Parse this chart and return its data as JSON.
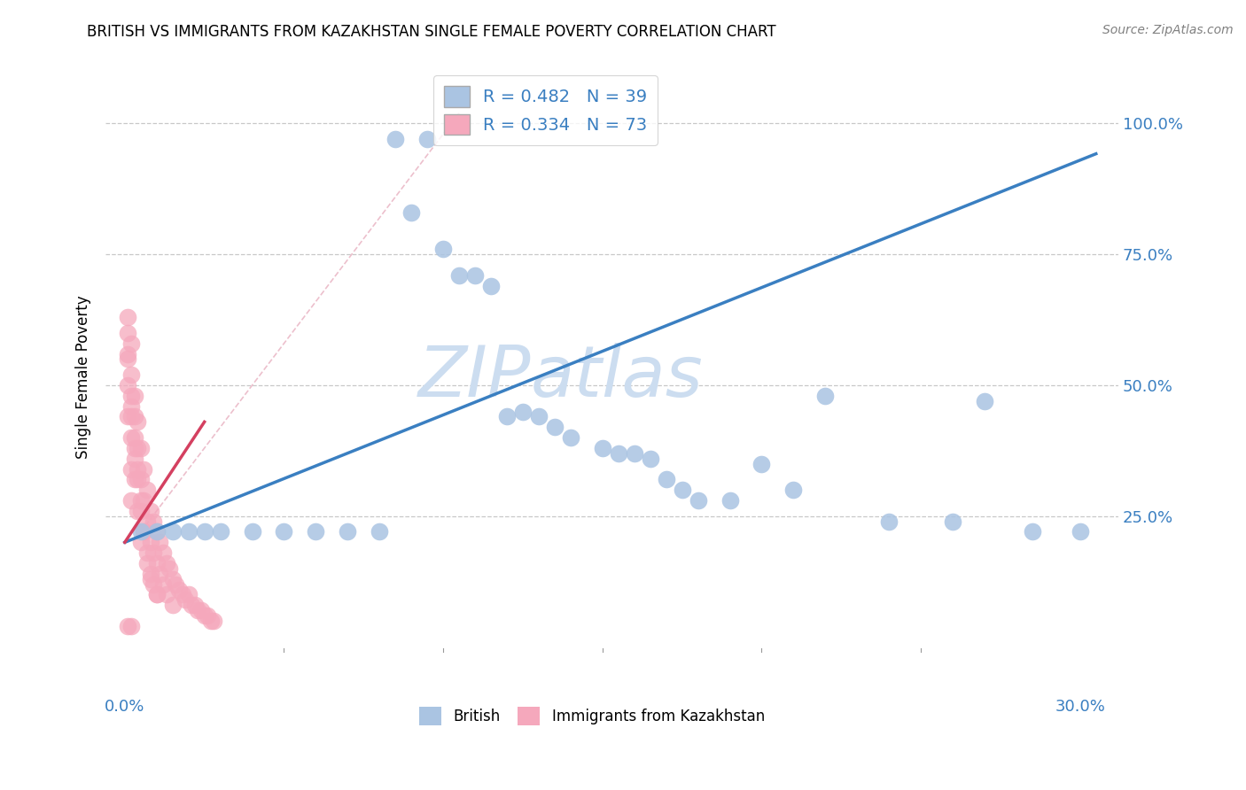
{
  "title": "BRITISH VS IMMIGRANTS FROM KAZAKHSTAN SINGLE FEMALE POVERTY CORRELATION CHART",
  "source": "Source: ZipAtlas.com",
  "ylabel": "Single Female Poverty",
  "x_tick_labels": [
    "0.0%",
    "",
    "",
    "",
    "",
    "",
    "30.0%"
  ],
  "x_tick_values": [
    0.0,
    0.05,
    0.1,
    0.15,
    0.2,
    0.25,
    0.3
  ],
  "y_tick_labels": [
    "",
    "25.0%",
    "50.0%",
    "75.0%",
    "100.0%"
  ],
  "y_tick_values": [
    0.0,
    0.25,
    0.5,
    0.75,
    1.0
  ],
  "xlim": [
    -0.006,
    0.312
  ],
  "ylim": [
    -0.09,
    1.12
  ],
  "legend_r1": "R = 0.482",
  "legend_n1": "N = 39",
  "legend_r2": "R = 0.334",
  "legend_n2": "N = 73",
  "british_color": "#aac4e2",
  "kazakh_color": "#f5a8bc",
  "british_line_color": "#3a7fc1",
  "kazakh_line_color": "#d44060",
  "dash_line_color": "#e8b0c0",
  "watermark_color": "#ccddf0",
  "brit_x": [
    0.005,
    0.01,
    0.015,
    0.02,
    0.025,
    0.03,
    0.04,
    0.05,
    0.06,
    0.07,
    0.08,
    0.085,
    0.09,
    0.095,
    0.1,
    0.105,
    0.11,
    0.115,
    0.12,
    0.125,
    0.13,
    0.135,
    0.14,
    0.15,
    0.155,
    0.16,
    0.165,
    0.17,
    0.175,
    0.18,
    0.19,
    0.2,
    0.21,
    0.22,
    0.24,
    0.26,
    0.27,
    0.285,
    0.3
  ],
  "brit_y": [
    0.22,
    0.22,
    0.22,
    0.22,
    0.22,
    0.22,
    0.22,
    0.22,
    0.22,
    0.22,
    0.22,
    0.97,
    0.83,
    0.97,
    0.76,
    0.71,
    0.71,
    0.69,
    0.44,
    0.45,
    0.44,
    0.42,
    0.4,
    0.38,
    0.37,
    0.37,
    0.36,
    0.32,
    0.3,
    0.28,
    0.28,
    0.35,
    0.3,
    0.48,
    0.24,
    0.24,
    0.47,
    0.22,
    0.22
  ],
  "kaz_x": [
    0.001,
    0.001,
    0.001,
    0.001,
    0.002,
    0.002,
    0.002,
    0.002,
    0.002,
    0.002,
    0.003,
    0.003,
    0.003,
    0.003,
    0.004,
    0.004,
    0.004,
    0.004,
    0.005,
    0.005,
    0.005,
    0.005,
    0.006,
    0.006,
    0.006,
    0.007,
    0.007,
    0.007,
    0.008,
    0.008,
    0.008,
    0.009,
    0.009,
    0.01,
    0.01,
    0.01,
    0.011,
    0.011,
    0.012,
    0.012,
    0.013,
    0.013,
    0.014,
    0.015,
    0.015,
    0.016,
    0.017,
    0.018,
    0.019,
    0.02,
    0.021,
    0.022,
    0.023,
    0.024,
    0.025,
    0.026,
    0.027,
    0.028,
    0.001,
    0.001,
    0.002,
    0.002,
    0.003,
    0.003,
    0.004,
    0.005,
    0.006,
    0.007,
    0.008,
    0.009,
    0.01,
    0.001,
    0.002
  ],
  "kaz_y": [
    0.6,
    0.55,
    0.5,
    0.44,
    0.58,
    0.52,
    0.46,
    0.4,
    0.34,
    0.28,
    0.48,
    0.44,
    0.38,
    0.32,
    0.43,
    0.38,
    0.32,
    0.26,
    0.38,
    0.32,
    0.26,
    0.2,
    0.34,
    0.28,
    0.22,
    0.3,
    0.24,
    0.18,
    0.26,
    0.2,
    0.14,
    0.24,
    0.18,
    0.22,
    0.16,
    0.1,
    0.2,
    0.14,
    0.18,
    0.12,
    0.16,
    0.1,
    0.15,
    0.13,
    0.08,
    0.12,
    0.11,
    0.1,
    0.09,
    0.1,
    0.08,
    0.08,
    0.07,
    0.07,
    0.06,
    0.06,
    0.05,
    0.05,
    0.63,
    0.56,
    0.48,
    0.44,
    0.4,
    0.36,
    0.34,
    0.28,
    0.22,
    0.16,
    0.13,
    0.12,
    0.1,
    0.04,
    0.04
  ]
}
